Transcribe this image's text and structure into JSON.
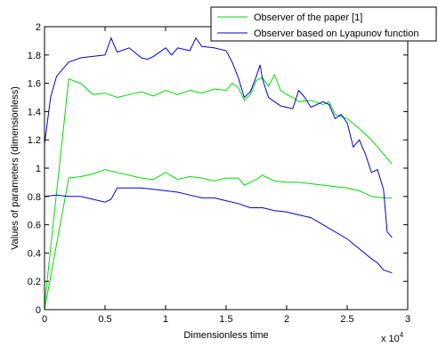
{
  "chart_data": {
    "type": "line",
    "xlabel": "Dimensionless time",
    "ylabel": "Values of parameters (dimensionless)",
    "x_multiplier_label": "x 10",
    "x_multiplier_exponent": "4",
    "xlim": [
      0,
      3
    ],
    "ylim": [
      0,
      2
    ],
    "xticks": [
      "0",
      "0.5",
      "1",
      "1.5",
      "2",
      "2.5",
      "3"
    ],
    "yticks": [
      "0",
      "0.2",
      "0.4",
      "0.6",
      "0.8",
      "1",
      "1.2",
      "1.4",
      "1.6",
      "1.8",
      "2"
    ],
    "legend_position": "top-right",
    "grid": false,
    "series": [
      {
        "name": "Observer of the paper [1]",
        "color": "#00dd00",
        "curves": [
          [
            [
              0,
              0.03
            ],
            [
              0.2,
              1.63
            ],
            [
              0.3,
              1.6
            ],
            [
              0.4,
              1.52
            ],
            [
              0.5,
              1.53
            ],
            [
              0.6,
              1.5
            ],
            [
              0.7,
              1.52
            ],
            [
              0.8,
              1.54
            ],
            [
              0.9,
              1.51
            ],
            [
              1.0,
              1.55
            ],
            [
              1.1,
              1.52
            ],
            [
              1.2,
              1.55
            ],
            [
              1.3,
              1.53
            ],
            [
              1.4,
              1.56
            ],
            [
              1.5,
              1.55
            ],
            [
              1.55,
              1.6
            ],
            [
              1.6,
              1.57
            ],
            [
              1.65,
              1.48
            ],
            [
              1.7,
              1.52
            ],
            [
              1.75,
              1.62
            ],
            [
              1.8,
              1.64
            ],
            [
              1.85,
              1.58
            ],
            [
              1.9,
              1.66
            ],
            [
              1.95,
              1.55
            ],
            [
              2.0,
              1.52
            ],
            [
              2.05,
              1.5
            ],
            [
              2.1,
              1.47
            ],
            [
              2.2,
              1.48
            ],
            [
              2.3,
              1.45
            ],
            [
              2.35,
              1.47
            ],
            [
              2.4,
              1.38
            ],
            [
              2.5,
              1.35
            ],
            [
              2.6,
              1.28
            ],
            [
              2.7,
              1.2
            ],
            [
              2.8,
              1.1
            ],
            [
              2.87,
              1.03
            ]
          ],
          [
            [
              0,
              0.0
            ],
            [
              0.2,
              0.93
            ],
            [
              0.3,
              0.94
            ],
            [
              0.4,
              0.96
            ],
            [
              0.5,
              0.99
            ],
            [
              0.6,
              0.97
            ],
            [
              0.7,
              0.95
            ],
            [
              0.8,
              0.93
            ],
            [
              0.9,
              0.92
            ],
            [
              1.0,
              0.97
            ],
            [
              1.1,
              0.92
            ],
            [
              1.2,
              0.94
            ],
            [
              1.3,
              0.93
            ],
            [
              1.4,
              0.91
            ],
            [
              1.5,
              0.93
            ],
            [
              1.6,
              0.93
            ],
            [
              1.65,
              0.88
            ],
            [
              1.7,
              0.9
            ],
            [
              1.75,
              0.92
            ],
            [
              1.8,
              0.95
            ],
            [
              1.9,
              0.91
            ],
            [
              2.0,
              0.9
            ],
            [
              2.1,
              0.9
            ],
            [
              2.2,
              0.89
            ],
            [
              2.3,
              0.88
            ],
            [
              2.4,
              0.87
            ],
            [
              2.5,
              0.86
            ],
            [
              2.6,
              0.84
            ],
            [
              2.65,
              0.82
            ],
            [
              2.7,
              0.8
            ],
            [
              2.8,
              0.79
            ],
            [
              2.87,
              0.79
            ]
          ]
        ]
      },
      {
        "name": "Observer based on Lyapunov function",
        "color": "#0000dd",
        "curves": [
          [
            [
              0,
              1.17
            ],
            [
              0.02,
              1.3
            ],
            [
              0.05,
              1.5
            ],
            [
              0.1,
              1.65
            ],
            [
              0.15,
              1.7
            ],
            [
              0.2,
              1.75
            ],
            [
              0.3,
              1.78
            ],
            [
              0.4,
              1.79
            ],
            [
              0.5,
              1.8
            ],
            [
              0.55,
              1.92
            ],
            [
              0.6,
              1.82
            ],
            [
              0.7,
              1.85
            ],
            [
              0.8,
              1.78
            ],
            [
              0.85,
              1.77
            ],
            [
              0.9,
              1.79
            ],
            [
              1.0,
              1.85
            ],
            [
              1.05,
              1.8
            ],
            [
              1.1,
              1.85
            ],
            [
              1.2,
              1.83
            ],
            [
              1.25,
              1.92
            ],
            [
              1.3,
              1.86
            ],
            [
              1.4,
              1.85
            ],
            [
              1.5,
              1.83
            ],
            [
              1.55,
              1.75
            ],
            [
              1.6,
              1.64
            ],
            [
              1.65,
              1.5
            ],
            [
              1.7,
              1.54
            ],
            [
              1.75,
              1.65
            ],
            [
              1.78,
              1.73
            ],
            [
              1.8,
              1.63
            ],
            [
              1.85,
              1.5
            ],
            [
              1.9,
              1.47
            ],
            [
              1.95,
              1.44
            ],
            [
              2.0,
              1.43
            ],
            [
              2.05,
              1.42
            ],
            [
              2.1,
              1.55
            ],
            [
              2.15,
              1.5
            ],
            [
              2.2,
              1.43
            ],
            [
              2.3,
              1.47
            ],
            [
              2.35,
              1.45
            ],
            [
              2.4,
              1.35
            ],
            [
              2.45,
              1.38
            ],
            [
              2.5,
              1.32
            ],
            [
              2.55,
              1.15
            ],
            [
              2.6,
              1.2
            ],
            [
              2.65,
              1.1
            ],
            [
              2.7,
              0.97
            ],
            [
              2.75,
              0.99
            ],
            [
              2.8,
              0.85
            ],
            [
              2.83,
              0.55
            ],
            [
              2.87,
              0.51
            ]
          ],
          [
            [
              0,
              0.8
            ],
            [
              0.1,
              0.81
            ],
            [
              0.2,
              0.8
            ],
            [
              0.3,
              0.8
            ],
            [
              0.4,
              0.78
            ],
            [
              0.5,
              0.76
            ],
            [
              0.55,
              0.78
            ],
            [
              0.6,
              0.86
            ],
            [
              0.7,
              0.86
            ],
            [
              0.8,
              0.86
            ],
            [
              0.9,
              0.85
            ],
            [
              1.0,
              0.84
            ],
            [
              1.1,
              0.83
            ],
            [
              1.2,
              0.81
            ],
            [
              1.3,
              0.79
            ],
            [
              1.4,
              0.79
            ],
            [
              1.5,
              0.77
            ],
            [
              1.6,
              0.75
            ],
            [
              1.7,
              0.72
            ],
            [
              1.8,
              0.72
            ],
            [
              1.9,
              0.7
            ],
            [
              2.0,
              0.69
            ],
            [
              2.1,
              0.67
            ],
            [
              2.2,
              0.65
            ],
            [
              2.3,
              0.6
            ],
            [
              2.4,
              0.55
            ],
            [
              2.5,
              0.5
            ],
            [
              2.6,
              0.43
            ],
            [
              2.7,
              0.36
            ],
            [
              2.75,
              0.33
            ],
            [
              2.8,
              0.28
            ],
            [
              2.87,
              0.26
            ]
          ]
        ]
      }
    ]
  }
}
